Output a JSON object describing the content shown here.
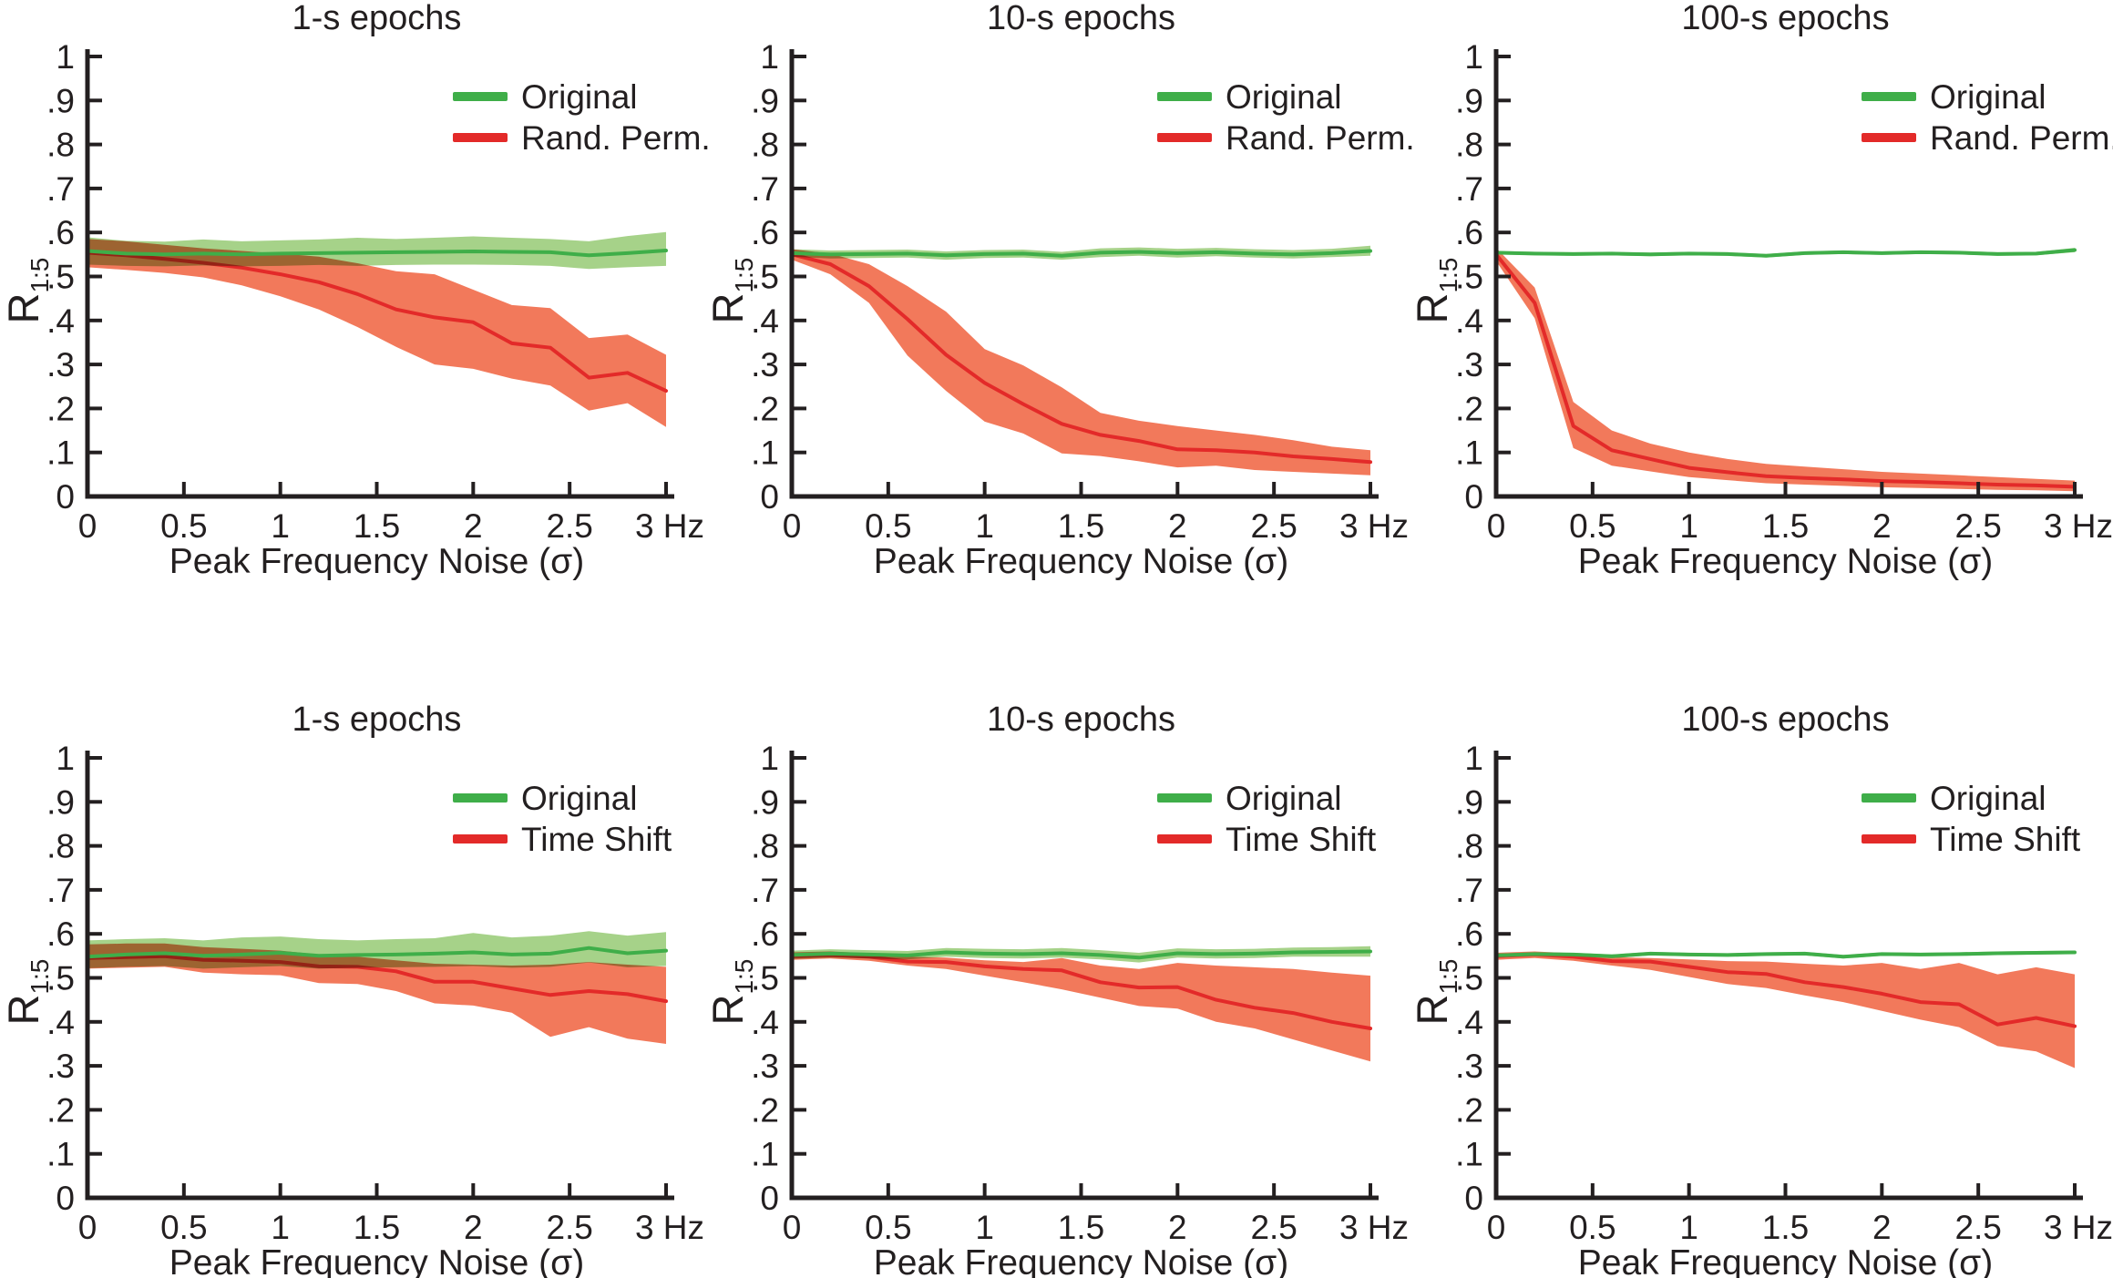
{
  "page": {
    "background": "#ffffff"
  },
  "colors": {
    "axis": "#231f20",
    "text": "#231f20",
    "green_line": "#3fae49",
    "green_fill": "#a6d289",
    "red_line": "#e32a29",
    "red_fill": "#f2795b"
  },
  "axis": {
    "xlabel": "Peak Frequency Noise (σ)",
    "ylabel_base": "R",
    "ylabel_sub": "1:5",
    "x_tick_values": [
      0,
      0.5,
      1,
      1.5,
      2,
      2.5,
      3
    ],
    "x_tick_labels": [
      "0",
      "0.5",
      "1",
      "1.5",
      "2",
      "2.5",
      "3 Hz"
    ],
    "y_tick_values": [
      0,
      0.1,
      0.2,
      0.3,
      0.4,
      0.5,
      0.6,
      0.7,
      0.8,
      0.9,
      1
    ],
    "y_tick_labels": [
      "0",
      ".1",
      ".2",
      ".3",
      ".4",
      ".5",
      ".6",
      ".7",
      ".8",
      ".9",
      "1"
    ],
    "grid": false,
    "legend_position": "top-right"
  },
  "chart_data": [
    {
      "type": "line",
      "title": "1-s epochs",
      "xlabel": "Peak Frequency Noise (σ)",
      "ylabel_base": "R",
      "ylabel_sub": "1:5",
      "xlim": [
        0,
        3
      ],
      "ylim": [
        0,
        1
      ],
      "x": [
        0,
        0.2,
        0.4,
        0.6,
        0.8,
        1,
        1.2,
        1.4,
        1.6,
        1.8,
        2,
        2.2,
        2.4,
        2.6,
        2.8,
        3
      ],
      "series": [
        {
          "name": "Original",
          "slug": "original",
          "color": "#3fae49",
          "fill": "#a6d289",
          "mean": [
            0.558,
            0.552,
            0.55,
            0.552,
            0.55,
            0.552,
            0.553,
            0.554,
            0.555,
            0.556,
            0.557,
            0.556,
            0.555,
            0.548,
            0.553,
            0.559
          ],
          "lower": [
            0.527,
            0.524,
            0.523,
            0.525,
            0.523,
            0.524,
            0.526,
            0.524,
            0.526,
            0.527,
            0.527,
            0.526,
            0.524,
            0.517,
            0.521,
            0.524
          ],
          "upper": [
            0.589,
            0.581,
            0.579,
            0.584,
            0.58,
            0.582,
            0.584,
            0.588,
            0.585,
            0.588,
            0.591,
            0.588,
            0.585,
            0.58,
            0.592,
            0.601
          ]
        },
        {
          "name": "Rand. Perm.",
          "slug": "rand-perm",
          "color": "#e32a29",
          "fill": "#f2795b",
          "mean": [
            0.554,
            0.548,
            0.54,
            0.531,
            0.52,
            0.505,
            0.487,
            0.46,
            0.425,
            0.407,
            0.396,
            0.348,
            0.338,
            0.27,
            0.281,
            0.24
          ],
          "lower": [
            0.521,
            0.515,
            0.508,
            0.498,
            0.48,
            0.455,
            0.425,
            0.385,
            0.34,
            0.3,
            0.29,
            0.268,
            0.252,
            0.195,
            0.212,
            0.158
          ],
          "upper": [
            0.585,
            0.58,
            0.572,
            0.564,
            0.558,
            0.552,
            0.545,
            0.53,
            0.512,
            0.505,
            0.47,
            0.435,
            0.428,
            0.36,
            0.368,
            0.322
          ]
        }
      ]
    },
    {
      "type": "line",
      "title": "10-s epochs",
      "xlabel": "Peak Frequency Noise (σ)",
      "ylabel_base": "R",
      "ylabel_sub": "1:5",
      "xlim": [
        0,
        3
      ],
      "ylim": [
        0,
        1
      ],
      "x": [
        0,
        0.2,
        0.4,
        0.6,
        0.8,
        1,
        1.2,
        1.4,
        1.6,
        1.8,
        2,
        2.2,
        2.4,
        2.6,
        2.8,
        3
      ],
      "series": [
        {
          "name": "Original",
          "slug": "original",
          "color": "#3fae49",
          "fill": "#a6d289",
          "mean": [
            0.553,
            0.55,
            0.551,
            0.552,
            0.548,
            0.551,
            0.552,
            0.547,
            0.554,
            0.556,
            0.553,
            0.555,
            0.552,
            0.55,
            0.553,
            0.558
          ],
          "lower": [
            0.545,
            0.541,
            0.542,
            0.543,
            0.538,
            0.542,
            0.543,
            0.538,
            0.544,
            0.547,
            0.543,
            0.546,
            0.543,
            0.541,
            0.544,
            0.547
          ],
          "upper": [
            0.562,
            0.559,
            0.56,
            0.561,
            0.557,
            0.56,
            0.561,
            0.556,
            0.564,
            0.566,
            0.563,
            0.565,
            0.562,
            0.56,
            0.563,
            0.57
          ]
        },
        {
          "name": "Rand. Perm.",
          "slug": "rand-perm",
          "color": "#e32a29",
          "fill": "#f2795b",
          "mean": [
            0.55,
            0.528,
            0.478,
            0.403,
            0.322,
            0.258,
            0.21,
            0.165,
            0.14,
            0.126,
            0.107,
            0.105,
            0.1,
            0.091,
            0.085,
            0.078
          ],
          "lower": [
            0.538,
            0.505,
            0.44,
            0.32,
            0.24,
            0.17,
            0.143,
            0.098,
            0.092,
            0.08,
            0.066,
            0.07,
            0.06,
            0.056,
            0.052,
            0.048
          ],
          "upper": [
            0.562,
            0.552,
            0.528,
            0.478,
            0.42,
            0.335,
            0.298,
            0.248,
            0.19,
            0.172,
            0.16,
            0.15,
            0.14,
            0.128,
            0.113,
            0.105
          ]
        }
      ]
    },
    {
      "type": "line",
      "title": "100-s epochs",
      "xlabel": "Peak Frequency Noise (σ)",
      "ylabel_base": "R",
      "ylabel_sub": "1:5",
      "xlim": [
        0,
        3
      ],
      "ylim": [
        0,
        1
      ],
      "x": [
        0,
        0.2,
        0.4,
        0.6,
        0.8,
        1,
        1.2,
        1.4,
        1.6,
        1.8,
        2,
        2.2,
        2.4,
        2.6,
        2.8,
        3
      ],
      "series": [
        {
          "name": "Original",
          "slug": "original",
          "color": "#3fae49",
          "fill": "#a6d289",
          "mean": [
            0.554,
            0.552,
            0.551,
            0.552,
            0.55,
            0.552,
            0.551,
            0.547,
            0.553,
            0.555,
            0.553,
            0.555,
            0.554,
            0.551,
            0.552,
            0.56
          ],
          "lower": [
            0.55,
            0.548,
            0.547,
            0.548,
            0.546,
            0.548,
            0.547,
            0.543,
            0.549,
            0.551,
            0.549,
            0.551,
            0.55,
            0.547,
            0.548,
            0.555
          ],
          "upper": [
            0.558,
            0.556,
            0.555,
            0.556,
            0.554,
            0.556,
            0.555,
            0.551,
            0.557,
            0.559,
            0.557,
            0.559,
            0.558,
            0.555,
            0.556,
            0.565
          ]
        },
        {
          "name": "Rand. Perm.",
          "slug": "rand-perm",
          "color": "#e32a29",
          "fill": "#f2795b",
          "mean": [
            0.55,
            0.44,
            0.16,
            0.105,
            0.085,
            0.065,
            0.055,
            0.046,
            0.042,
            0.039,
            0.035,
            0.033,
            0.03,
            0.027,
            0.025,
            0.022
          ],
          "lower": [
            0.535,
            0.405,
            0.11,
            0.07,
            0.057,
            0.044,
            0.037,
            0.03,
            0.027,
            0.024,
            0.021,
            0.019,
            0.017,
            0.015,
            0.014,
            0.012
          ],
          "upper": [
            0.565,
            0.475,
            0.215,
            0.15,
            0.12,
            0.1,
            0.085,
            0.074,
            0.068,
            0.062,
            0.056,
            0.052,
            0.048,
            0.044,
            0.04,
            0.036
          ]
        }
      ]
    },
    {
      "type": "line",
      "title": "1-s epochs",
      "xlabel": "Peak Frequency Noise (σ)",
      "ylabel_base": "R",
      "ylabel_sub": "1:5",
      "xlim": [
        0,
        3
      ],
      "ylim": [
        0,
        1
      ],
      "x": [
        0,
        0.2,
        0.4,
        0.6,
        0.8,
        1,
        1.2,
        1.4,
        1.6,
        1.8,
        2,
        2.2,
        2.4,
        2.6,
        2.8,
        3
      ],
      "series": [
        {
          "name": "Original",
          "slug": "original",
          "color": "#3fae49",
          "fill": "#a6d289",
          "mean": [
            0.548,
            0.553,
            0.556,
            0.55,
            0.553,
            0.557,
            0.55,
            0.552,
            0.553,
            0.555,
            0.558,
            0.553,
            0.555,
            0.568,
            0.556,
            0.562
          ],
          "lower": [
            0.522,
            0.525,
            0.527,
            0.521,
            0.524,
            0.527,
            0.521,
            0.523,
            0.524,
            0.525,
            0.527,
            0.523,
            0.525,
            0.535,
            0.524,
            0.527
          ],
          "upper": [
            0.585,
            0.588,
            0.59,
            0.585,
            0.592,
            0.594,
            0.588,
            0.585,
            0.588,
            0.59,
            0.602,
            0.592,
            0.596,
            0.606,
            0.596,
            0.604
          ]
        },
        {
          "name": "Time Shift",
          "slug": "time-shift",
          "color": "#e32a29",
          "fill": "#f2795b",
          "mean": [
            0.545,
            0.547,
            0.549,
            0.541,
            0.539,
            0.536,
            0.526,
            0.525,
            0.515,
            0.491,
            0.491,
            0.476,
            0.461,
            0.47,
            0.463,
            0.447
          ],
          "lower": [
            0.521,
            0.523,
            0.525,
            0.512,
            0.508,
            0.506,
            0.488,
            0.486,
            0.47,
            0.442,
            0.437,
            0.421,
            0.366,
            0.388,
            0.362,
            0.35
          ],
          "upper": [
            0.576,
            0.578,
            0.578,
            0.57,
            0.566,
            0.562,
            0.553,
            0.548,
            0.54,
            0.532,
            0.53,
            0.528,
            0.53,
            0.536,
            0.53,
            0.525
          ]
        }
      ]
    },
    {
      "type": "line",
      "title": "10-s epochs",
      "xlabel": "Peak Frequency Noise (σ)",
      "ylabel_base": "R",
      "ylabel_sub": "1:5",
      "xlim": [
        0,
        3
      ],
      "ylim": [
        0,
        1
      ],
      "x": [
        0,
        0.2,
        0.4,
        0.6,
        0.8,
        1,
        1.2,
        1.4,
        1.6,
        1.8,
        2,
        2.2,
        2.4,
        2.6,
        2.8,
        3
      ],
      "series": [
        {
          "name": "Original",
          "slug": "original",
          "color": "#3fae49",
          "fill": "#a6d289",
          "mean": [
            0.552,
            0.555,
            0.553,
            0.551,
            0.558,
            0.555,
            0.554,
            0.556,
            0.552,
            0.546,
            0.556,
            0.554,
            0.555,
            0.558,
            0.559,
            0.56
          ],
          "lower": [
            0.543,
            0.546,
            0.544,
            0.542,
            0.548,
            0.545,
            0.544,
            0.546,
            0.542,
            0.535,
            0.546,
            0.544,
            0.545,
            0.548,
            0.548,
            0.548
          ],
          "upper": [
            0.562,
            0.565,
            0.563,
            0.561,
            0.568,
            0.566,
            0.565,
            0.568,
            0.563,
            0.557,
            0.567,
            0.565,
            0.566,
            0.569,
            0.57,
            0.572
          ]
        },
        {
          "name": "Time Shift",
          "slug": "time-shift",
          "color": "#e32a29",
          "fill": "#f2795b",
          "mean": [
            0.549,
            0.552,
            0.548,
            0.537,
            0.536,
            0.526,
            0.52,
            0.517,
            0.49,
            0.478,
            0.479,
            0.45,
            0.432,
            0.42,
            0.4,
            0.385
          ],
          "lower": [
            0.541,
            0.544,
            0.539,
            0.528,
            0.52,
            0.505,
            0.49,
            0.474,
            0.455,
            0.436,
            0.43,
            0.4,
            0.385,
            0.36,
            0.335,
            0.31
          ],
          "upper": [
            0.558,
            0.56,
            0.556,
            0.548,
            0.546,
            0.54,
            0.536,
            0.545,
            0.528,
            0.52,
            0.534,
            0.528,
            0.524,
            0.52,
            0.512,
            0.505
          ]
        }
      ]
    },
    {
      "type": "line",
      "title": "100-s epochs",
      "xlabel": "Peak Frequency Noise (σ)",
      "ylabel_base": "R",
      "ylabel_sub": "1:5",
      "xlim": [
        0,
        3
      ],
      "ylim": [
        0,
        1
      ],
      "x": [
        0,
        0.2,
        0.4,
        0.6,
        0.8,
        1,
        1.2,
        1.4,
        1.6,
        1.8,
        2,
        2.2,
        2.4,
        2.6,
        2.8,
        3
      ],
      "series": [
        {
          "name": "Original",
          "slug": "original",
          "color": "#3fae49",
          "fill": "#a6d289",
          "mean": [
            0.551,
            0.554,
            0.553,
            0.549,
            0.555,
            0.553,
            0.552,
            0.554,
            0.555,
            0.548,
            0.554,
            0.553,
            0.554,
            0.556,
            0.557,
            0.558
          ],
          "lower": [
            0.547,
            0.55,
            0.549,
            0.545,
            0.551,
            0.549,
            0.548,
            0.55,
            0.551,
            0.544,
            0.55,
            0.549,
            0.55,
            0.552,
            0.553,
            0.554
          ],
          "upper": [
            0.555,
            0.558,
            0.557,
            0.553,
            0.559,
            0.557,
            0.556,
            0.558,
            0.559,
            0.552,
            0.558,
            0.557,
            0.558,
            0.56,
            0.561,
            0.562
          ]
        },
        {
          "name": "Time Shift",
          "slug": "time-shift",
          "color": "#e32a29",
          "fill": "#f2795b",
          "mean": [
            0.549,
            0.553,
            0.548,
            0.538,
            0.537,
            0.525,
            0.513,
            0.509,
            0.49,
            0.479,
            0.464,
            0.445,
            0.44,
            0.394,
            0.409,
            0.39
          ],
          "lower": [
            0.541,
            0.545,
            0.539,
            0.528,
            0.518,
            0.502,
            0.486,
            0.477,
            0.46,
            0.445,
            0.425,
            0.405,
            0.388,
            0.345,
            0.333,
            0.295
          ],
          "upper": [
            0.557,
            0.56,
            0.556,
            0.547,
            0.545,
            0.542,
            0.538,
            0.537,
            0.532,
            0.528,
            0.534,
            0.52,
            0.534,
            0.508,
            0.524,
            0.508
          ]
        }
      ]
    }
  ]
}
